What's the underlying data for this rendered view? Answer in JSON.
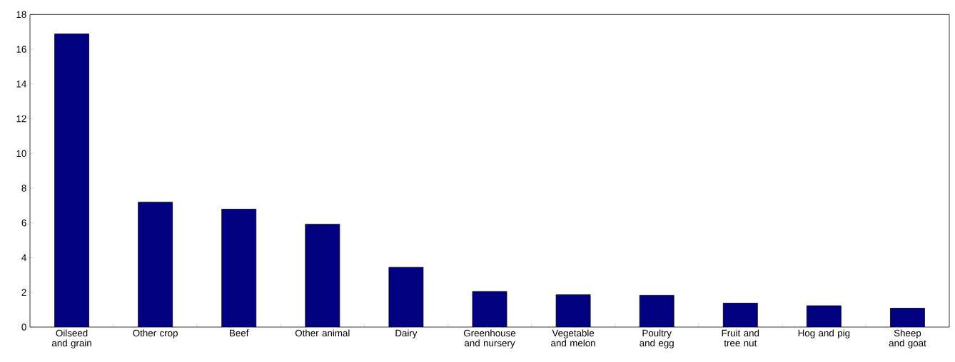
{
  "chart_data": {
    "type": "bar",
    "categories": [
      "Oilseed and grain",
      "Other crop",
      "Beef",
      "Other animal",
      "Dairy",
      "Greenhouse and nursery",
      "Vegetable and melon",
      "Poultry and egg",
      "Fruit and tree nut",
      "Hog and pig",
      "Sheep and goat"
    ],
    "values": [
      16.88,
      7.19,
      6.79,
      5.92,
      3.44,
      2.05,
      1.86,
      1.83,
      1.38,
      1.23,
      1.09
    ],
    "color": "#000080",
    "ylim": [
      0,
      18
    ],
    "yticks": [
      0,
      2,
      4,
      6,
      8,
      10,
      12,
      14,
      16,
      18
    ]
  }
}
